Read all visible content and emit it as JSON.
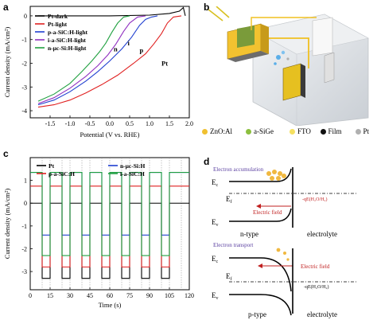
{
  "panels": {
    "a": "a",
    "b": "b",
    "c": "c",
    "d": "d"
  },
  "chart_data": [
    {
      "type": "line",
      "title": "",
      "xlabel": "Potential (V vs. RHE)",
      "ylabel": "Current density (mA/cm²)",
      "xlim": [
        -2.0,
        2.0
      ],
      "ylim": [
        -4.3,
        0.4
      ],
      "xticks": [
        "-1.5",
        "-1.0",
        "-0.5",
        "0.0",
        "0.5",
        "1.0",
        "1.5",
        "2.0"
      ],
      "yticks": [
        "0",
        "-1",
        "-2",
        "-3",
        "-4"
      ],
      "legend": [
        "Pt-dark",
        "Pt-light",
        "p-a-SiC:H-light",
        "i-a-SiC:H-light",
        "n-μc-Si:H-light"
      ],
      "annotations": [
        "n",
        "i",
        "p",
        "Pt"
      ],
      "series": [
        {
          "name": "Pt-dark",
          "color": "#000000",
          "x": [
            -1.8,
            -1.0,
            0.0,
            1.0,
            1.5,
            1.75,
            1.85,
            1.9
          ],
          "y": [
            0.0,
            0.0,
            0.0,
            0.03,
            0.1,
            0.2,
            0.35,
            0.0
          ]
        },
        {
          "name": "Pt-light",
          "color": "#e02020",
          "x": [
            -1.8,
            -1.4,
            -1.0,
            -0.6,
            -0.2,
            0.2,
            0.6,
            0.9,
            1.1,
            1.3,
            1.45,
            1.6,
            1.8
          ],
          "y": [
            -3.85,
            -3.75,
            -3.55,
            -3.25,
            -2.9,
            -2.5,
            -2.0,
            -1.6,
            -1.2,
            -0.75,
            -0.3,
            -0.05,
            0.0
          ]
        },
        {
          "name": "p-a-SiC:H-light",
          "color": "#2040d0",
          "x": [
            -1.8,
            -1.4,
            -1.0,
            -0.6,
            -0.3,
            0.0,
            0.3,
            0.55,
            0.75,
            0.9,
            1.05,
            1.2
          ],
          "y": [
            -3.75,
            -3.55,
            -3.2,
            -2.75,
            -2.35,
            -1.9,
            -1.4,
            -0.9,
            -0.4,
            -0.15,
            -0.05,
            0.0
          ]
        },
        {
          "name": "i-a-SiC:H-light",
          "color": "#9030c0",
          "x": [
            -1.8,
            -1.4,
            -1.0,
            -0.6,
            -0.3,
            -0.05,
            0.15,
            0.35,
            0.5,
            0.7,
            0.9
          ],
          "y": [
            -3.7,
            -3.45,
            -3.05,
            -2.55,
            -2.1,
            -1.65,
            -1.2,
            -0.65,
            -0.3,
            -0.05,
            0.0
          ]
        },
        {
          "name": "n-μc-Si:H-light",
          "color": "#20a040",
          "x": [
            -1.8,
            -1.4,
            -1.0,
            -0.7,
            -0.45,
            -0.25,
            -0.1,
            0.05,
            0.2,
            0.35,
            0.5
          ],
          "y": [
            -3.6,
            -3.3,
            -2.85,
            -2.35,
            -1.9,
            -1.5,
            -1.15,
            -0.7,
            -0.3,
            -0.05,
            0.0
          ]
        }
      ]
    },
    {
      "type": "line",
      "title": "",
      "xlabel": "Time (s)",
      "ylabel": "Current density (mA/cm²)",
      "xlim": [
        0,
        120
      ],
      "ylim": [
        -3.8,
        2.0
      ],
      "xticks": [
        "0",
        "15",
        "30",
        "45",
        "60",
        "75",
        "90",
        "105",
        "120"
      ],
      "yticks": [
        "1",
        "0",
        "-1",
        "-2",
        "-3"
      ],
      "legend": [
        "Pt",
        "n-μc-Si:H",
        "p-a-SiC:H",
        "i-a-SiC:H"
      ],
      "on_off_periods": [
        [
          8,
          23
        ],
        [
          23,
          38
        ],
        [
          38,
          53
        ],
        [
          53,
          68
        ],
        [
          68,
          83
        ],
        [
          83,
          98
        ],
        [
          98,
          113
        ]
      ],
      "series": [
        {
          "name": "Pt",
          "color": "#000000",
          "light_off": 0.0,
          "light_on": -3.3
        },
        {
          "name": "n-μc-Si:H",
          "color": "#2040d0",
          "light_off": 1.35,
          "light_on": -1.4
        },
        {
          "name": "p-a-SiC:H",
          "color": "#e02020",
          "light_off": 0.75,
          "light_on": -2.8
        },
        {
          "name": "i-a-SiC:H",
          "color": "#20a040",
          "light_off": 1.35,
          "light_on": -2.3
        }
      ]
    }
  ],
  "legend_b": [
    {
      "label": "ZnO:Al",
      "color": "#f0c030"
    },
    {
      "label": "a-SiGe",
      "color": "#8cbf3f"
    },
    {
      "label": "FTO",
      "color": "#f5e060"
    },
    {
      "label": "Film",
      "color": "#111111"
    },
    {
      "label": "Pt",
      "color": "#b0b0b0"
    }
  ],
  "band_diagram": {
    "top": {
      "electron_label": "Electron accumulation",
      "ec": "E",
      "ec_sub": "c",
      "ef": "E",
      "ef_sub": "f",
      "ev": "E",
      "ev_sub": "v",
      "field": "Electric field",
      "redox": "-qE(H₂O/H₂)",
      "left": "n-type",
      "right": "electrolyte"
    },
    "bottom": {
      "electron_label": "Electron transport",
      "ec": "E",
      "ec_sub": "c",
      "ef": "E",
      "ef_sub": "f",
      "ev": "E",
      "ev_sub": "v",
      "field": "Electric field",
      "redox": "-qE(H₂O/H₂)",
      "left": "p-type",
      "right": "electrolyte"
    }
  }
}
